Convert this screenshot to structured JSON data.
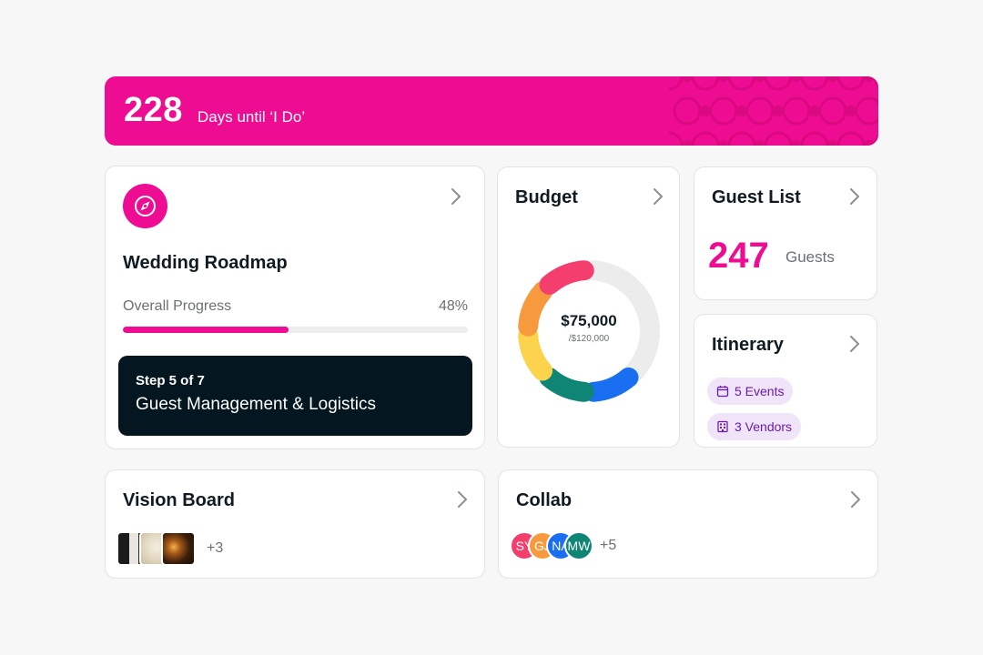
{
  "banner": {
    "count": "228",
    "label": "Days until ‘I Do’",
    "color": "#ee0c92"
  },
  "roadmap": {
    "title": "Wedding Roadmap",
    "icon": "compass-icon",
    "progress_label": "Overall Progress",
    "progress_value": "48%",
    "progress_fraction": 0.48,
    "step": "Step 5 of 7",
    "step_name": "Guest Management & Logistics"
  },
  "budget": {
    "title": "Budget",
    "spent": "$75,000",
    "total": "/$120,000",
    "chart_data": {
      "type": "pie",
      "variant": "donut",
      "total": 120000,
      "spent": 75000,
      "segments": [
        {
          "color": "#f43f6e"
        },
        {
          "color": "#f79a3d"
        },
        {
          "color": "#fcd34d"
        },
        {
          "color": "#0f8576"
        },
        {
          "color": "#1a6ff0"
        }
      ],
      "remaining_color": "#ececed"
    }
  },
  "guest_list": {
    "title": "Guest List",
    "count": "247",
    "label": "Guests"
  },
  "itinerary": {
    "title": "Itinerary",
    "events": "5 Events",
    "vendors": "3 Vendors"
  },
  "vision_board": {
    "title": "Vision Board",
    "more": "+3"
  },
  "collab": {
    "title": "Collab",
    "more": "+5",
    "avatars": [
      {
        "initials": "SY",
        "color": "#f43f6e"
      },
      {
        "initials": "GJ",
        "color": "#f79a3d"
      },
      {
        "initials": "NA",
        "color": "#1a6ff0"
      },
      {
        "initials": "MW",
        "color": "#0f8576"
      }
    ]
  }
}
